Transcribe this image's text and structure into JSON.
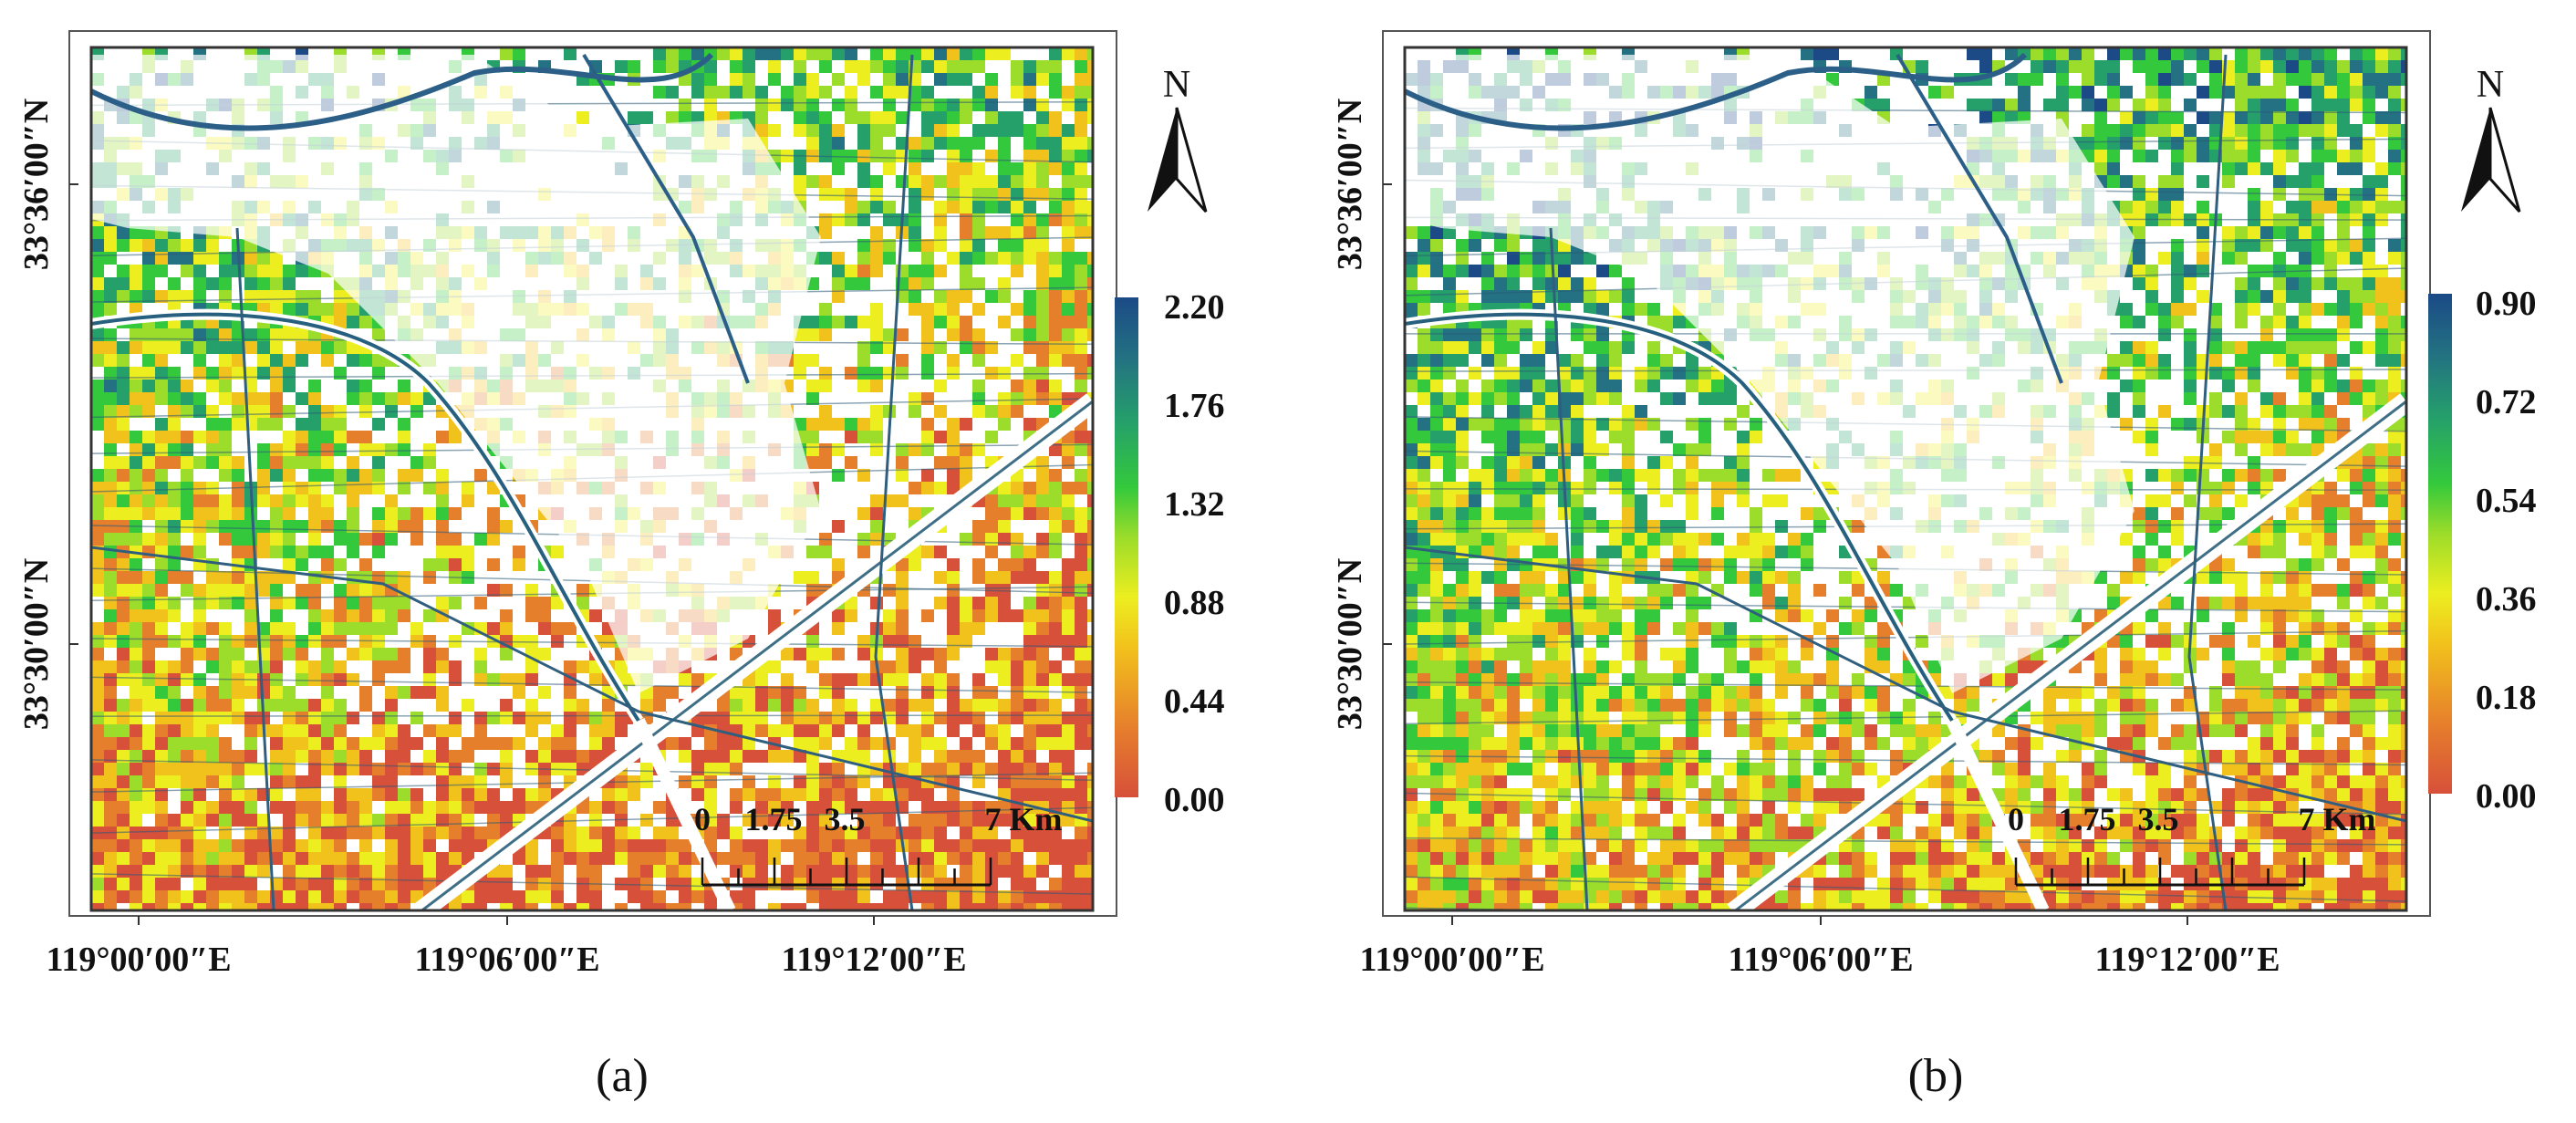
{
  "colors": {
    "background": "#ffffff",
    "frame": "#333333",
    "ramp": [
      "#d7503a",
      "#e67f2c",
      "#f2c21c",
      "#ecee20",
      "#9cdc2a",
      "#34c93c",
      "#25a06a",
      "#237182",
      "#1b4a86"
    ]
  },
  "north_arrow": {
    "label": "N",
    "icon": "north-arrow-icon"
  },
  "scale_bar": {
    "labels": [
      "0",
      "1.75",
      "3.5",
      "7 Km"
    ],
    "ticks": [
      0,
      0.875,
      1.75,
      2.625,
      3.5,
      4.375,
      5.25,
      6.125,
      7
    ]
  },
  "panels": [
    {
      "caption": "(a)",
      "lat_labels": [
        "33°36′00″N",
        "33°30′00″N"
      ],
      "lon_labels": [
        "119°00′00″E",
        "119°06′00″E",
        "119°12′00″E"
      ],
      "legend": {
        "min": 0.0,
        "max": 2.2,
        "labels": [
          "2.20",
          "1.76",
          "1.32",
          "0.88",
          "0.44",
          "0.00"
        ]
      }
    },
    {
      "caption": "(b)",
      "lat_labels": [
        "33°36′00″N",
        "33°30′00″N"
      ],
      "lon_labels": [
        "119°00′00″E",
        "119°06′00″E",
        "119°12′00″E"
      ],
      "legend": {
        "min": 0.0,
        "max": 0.9,
        "labels": [
          "0.90",
          "0.72",
          "0.54",
          "0.36",
          "0.18",
          "0.00"
        ]
      }
    }
  ]
}
